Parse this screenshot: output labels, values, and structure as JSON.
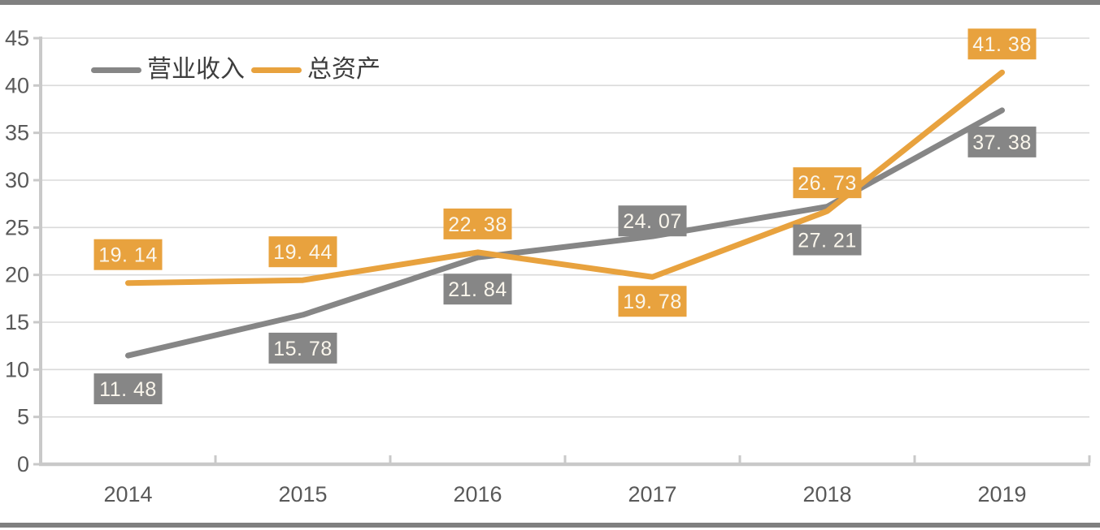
{
  "page": {
    "top_bar_color": "#808080",
    "bottom_bar_color": "#7f7f7f",
    "background_color": "#ffffff"
  },
  "chart_data": {
    "type": "line",
    "title": "",
    "xlabel": "",
    "ylabel": "",
    "categories": [
      "2014",
      "2015",
      "2016",
      "2017",
      "2018",
      "2019"
    ],
    "series": [
      {
        "name": "营业收入",
        "color": "#868686",
        "values": [
          11.48,
          15.78,
          21.84,
          24.07,
          27.21,
          37.38
        ],
        "labels": [
          "11. 48",
          "15. 78",
          "21. 84",
          "24. 07",
          "27. 21",
          "37. 38"
        ],
        "label_placements": [
          "below",
          "below",
          "below",
          "above",
          "below",
          "below"
        ],
        "label_dy": [
          0,
          0,
          -2,
          16,
          0,
          -2
        ]
      },
      {
        "name": "总资产",
        "color": "#e8a23e",
        "values": [
          19.14,
          19.44,
          22.38,
          19.78,
          26.73,
          41.38
        ],
        "labels": [
          "19. 14",
          "19. 44",
          "22. 38",
          "19. 78",
          "26. 73",
          "41. 38"
        ],
        "label_placements": [
          "above",
          "above",
          "above",
          "below",
          "above",
          "above"
        ],
        "label_dy": [
          0,
          0,
          0,
          -11,
          0,
          0
        ]
      }
    ],
    "ylim": [
      0,
      45
    ],
    "ystep": 5,
    "ytick_labels": [
      "0",
      "5",
      "10",
      "15",
      "20",
      "25",
      "30",
      "35",
      "40",
      "45"
    ],
    "grid": true,
    "legend_position": "top-left",
    "colors": {
      "gridline": "#dadada",
      "axis_line": "#c9c9c9",
      "axis_text": "#595959",
      "data_label_text": "#faf6ec",
      "legend_text": "#3d3d3d"
    }
  }
}
